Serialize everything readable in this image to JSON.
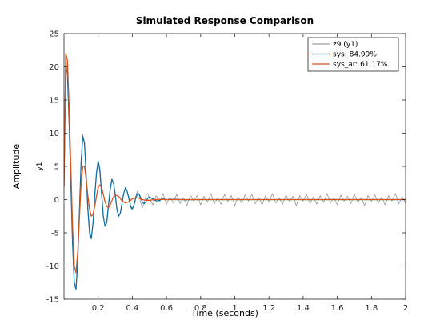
{
  "chart_data": {
    "type": "line",
    "title": "Simulated Response Comparison",
    "xlabel": "Time (seconds)",
    "ylabel": "Amplitude",
    "channel_label": "y1",
    "xlim": [
      0,
      2
    ],
    "ylim": [
      -15,
      25
    ],
    "x_ticks": [
      0.2,
      0.4,
      0.6,
      0.8,
      1.0,
      1.2,
      1.4,
      1.6,
      1.8,
      2.0
    ],
    "x_tick_labels": [
      "0.2",
      "0.4",
      "0.6",
      "0.8",
      "1",
      "1.2",
      "1.4",
      "1.6",
      "1.8",
      "2"
    ],
    "y_ticks": [
      -15,
      -10,
      -5,
      0,
      5,
      10,
      15,
      20,
      25
    ],
    "y_tick_labels": [
      "-15",
      "-10",
      "-5",
      "0",
      "5",
      "10",
      "15",
      "20",
      "25"
    ],
    "grid": false,
    "legend_position": "top-right",
    "series": [
      {
        "name": "z9 (y1)",
        "color": "#8a8a8a",
        "x": [
          0.0,
          0.01,
          0.02,
          0.03,
          0.04,
          0.05,
          0.06,
          0.07,
          0.08,
          0.09,
          0.1,
          0.11,
          0.12,
          0.13,
          0.14,
          0.15,
          0.16,
          0.17,
          0.18,
          0.19,
          0.2,
          0.21,
          0.22,
          0.23,
          0.24,
          0.25,
          0.26,
          0.27,
          0.28,
          0.29,
          0.3,
          0.31,
          0.32,
          0.33,
          0.34,
          0.35,
          0.36,
          0.37,
          0.38,
          0.39,
          0.4,
          0.41,
          0.42,
          0.43,
          0.44,
          0.45,
          0.46,
          0.47,
          0.48,
          0.49,
          0.5,
          0.52,
          0.54,
          0.56,
          0.58,
          0.6,
          0.62,
          0.64,
          0.66,
          0.68,
          0.7,
          0.72,
          0.74,
          0.76,
          0.78,
          0.8,
          0.82,
          0.84,
          0.86,
          0.88,
          0.9,
          0.92,
          0.94,
          0.96,
          0.98,
          1.0,
          1.02,
          1.04,
          1.06,
          1.08,
          1.1,
          1.12,
          1.14,
          1.16,
          1.18,
          1.2,
          1.22,
          1.24,
          1.26,
          1.28,
          1.3,
          1.32,
          1.34,
          1.36,
          1.38,
          1.4,
          1.42,
          1.44,
          1.46,
          1.48,
          1.5,
          1.52,
          1.54,
          1.56,
          1.58,
          1.6,
          1.62,
          1.64,
          1.66,
          1.68,
          1.7,
          1.72,
          1.74,
          1.76,
          1.78,
          1.8,
          1.82,
          1.84,
          1.86,
          1.88,
          1.9,
          1.92,
          1.94,
          1.96,
          1.98,
          2.0
        ],
        "y": [
          3.0,
          21.0,
          19.5,
          12.0,
          3.0,
          -6.5,
          -12.5,
          -13.5,
          -9.5,
          -2.0,
          5.5,
          9.8,
          8.5,
          3.5,
          -2.0,
          -5.5,
          -6.0,
          -3.5,
          0.5,
          4.0,
          5.8,
          4.0,
          0.5,
          -2.5,
          -4.0,
          -3.2,
          -1.0,
          1.5,
          3.2,
          2.5,
          0.5,
          -1.5,
          -2.5,
          -2.0,
          -0.5,
          1.0,
          1.8,
          1.2,
          0.0,
          -1.2,
          -1.5,
          -0.8,
          0.5,
          1.3,
          0.8,
          -0.5,
          -1.2,
          -0.4,
          0.7,
          0.9,
          0.2,
          -0.8,
          0.6,
          -0.3,
          0.9,
          -0.7,
          0.4,
          -0.5,
          0.8,
          -0.6,
          0.3,
          -0.9,
          0.7,
          -0.2,
          0.6,
          -0.8,
          0.5,
          -0.4,
          0.9,
          -0.6,
          0.2,
          -0.7,
          0.8,
          -0.3,
          0.6,
          -0.9,
          0.4,
          -0.5,
          0.7,
          -0.2,
          0.8,
          -0.6,
          0.3,
          -0.8,
          0.6,
          -0.4,
          0.9,
          -0.5,
          0.2,
          -0.7,
          0.7,
          -0.3,
          0.5,
          -0.9,
          0.6,
          -0.2,
          0.8,
          -0.6,
          0.4,
          -0.7,
          0.6,
          -0.4,
          0.9,
          -0.5,
          0.3,
          -0.8,
          0.7,
          -0.2,
          0.5,
          -0.6,
          0.8,
          -0.4,
          0.3,
          -0.9,
          0.6,
          -0.3,
          0.7,
          -0.5,
          0.4,
          -0.8,
          0.6,
          -0.2,
          0.9,
          -0.6,
          0.4,
          -0.5
        ]
      },
      {
        "name": "sys: 84.99%",
        "color": "#0e6fa8",
        "x": [
          0.0,
          0.01,
          0.02,
          0.03,
          0.04,
          0.05,
          0.06,
          0.07,
          0.08,
          0.09,
          0.1,
          0.11,
          0.12,
          0.13,
          0.14,
          0.15,
          0.16,
          0.17,
          0.18,
          0.19,
          0.2,
          0.21,
          0.22,
          0.23,
          0.24,
          0.25,
          0.26,
          0.27,
          0.28,
          0.29,
          0.3,
          0.31,
          0.32,
          0.33,
          0.34,
          0.35,
          0.36,
          0.37,
          0.38,
          0.39,
          0.4,
          0.41,
          0.42,
          0.43,
          0.44,
          0.45,
          0.46,
          0.47,
          0.48,
          0.49,
          0.5,
          0.52,
          0.54,
          0.56,
          0.58,
          0.6,
          0.65,
          0.7,
          0.8,
          0.9,
          1.0,
          1.2,
          1.5,
          2.0
        ],
        "y": [
          2.0,
          20.0,
          19.0,
          11.5,
          2.5,
          -6.5,
          -12.5,
          -13.5,
          -9.5,
          -2.0,
          5.5,
          9.5,
          8.5,
          3.5,
          -1.5,
          -5.0,
          -5.8,
          -3.5,
          0.5,
          4.0,
          5.8,
          4.5,
          1.0,
          -2.5,
          -4.0,
          -3.5,
          -1.0,
          1.5,
          3.0,
          2.5,
          0.8,
          -1.5,
          -2.5,
          -2.0,
          -0.5,
          1.0,
          1.8,
          1.2,
          0.2,
          -1.0,
          -1.4,
          -0.8,
          0.2,
          0.9,
          0.8,
          0.2,
          -0.4,
          -0.6,
          -0.3,
          0.2,
          0.4,
          0.1,
          -0.2,
          -0.1,
          0.1,
          0.0,
          0.05,
          -0.02,
          0.0,
          0.0,
          0.0,
          0.0,
          0.0,
          0.0
        ]
      },
      {
        "name": "sys_ar: 61.17%",
        "color": "#d95319",
        "x": [
          0.0,
          0.01,
          0.02,
          0.03,
          0.04,
          0.05,
          0.06,
          0.07,
          0.08,
          0.09,
          0.1,
          0.11,
          0.12,
          0.13,
          0.14,
          0.15,
          0.16,
          0.17,
          0.18,
          0.19,
          0.2,
          0.21,
          0.22,
          0.23,
          0.24,
          0.25,
          0.26,
          0.27,
          0.28,
          0.29,
          0.3,
          0.32,
          0.34,
          0.36,
          0.38,
          0.4,
          0.42,
          0.44,
          0.46,
          0.48,
          0.5,
          0.55,
          0.6,
          0.7,
          0.8,
          1.0,
          1.5,
          2.0
        ],
        "y": [
          2.0,
          22.0,
          21.0,
          14.0,
          5.0,
          -4.0,
          -10.0,
          -11.0,
          -8.0,
          -3.0,
          2.5,
          5.0,
          5.0,
          3.0,
          0.5,
          -1.5,
          -2.5,
          -2.2,
          -1.0,
          0.5,
          1.8,
          2.2,
          1.8,
          0.8,
          -0.3,
          -1.0,
          -1.2,
          -0.8,
          -0.2,
          0.4,
          0.7,
          0.5,
          -0.2,
          -0.5,
          -0.3,
          0.1,
          0.3,
          0.2,
          0.0,
          -0.1,
          -0.1,
          0.05,
          0.0,
          0.0,
          0.0,
          0.0,
          0.0,
          0.0
        ]
      }
    ]
  }
}
